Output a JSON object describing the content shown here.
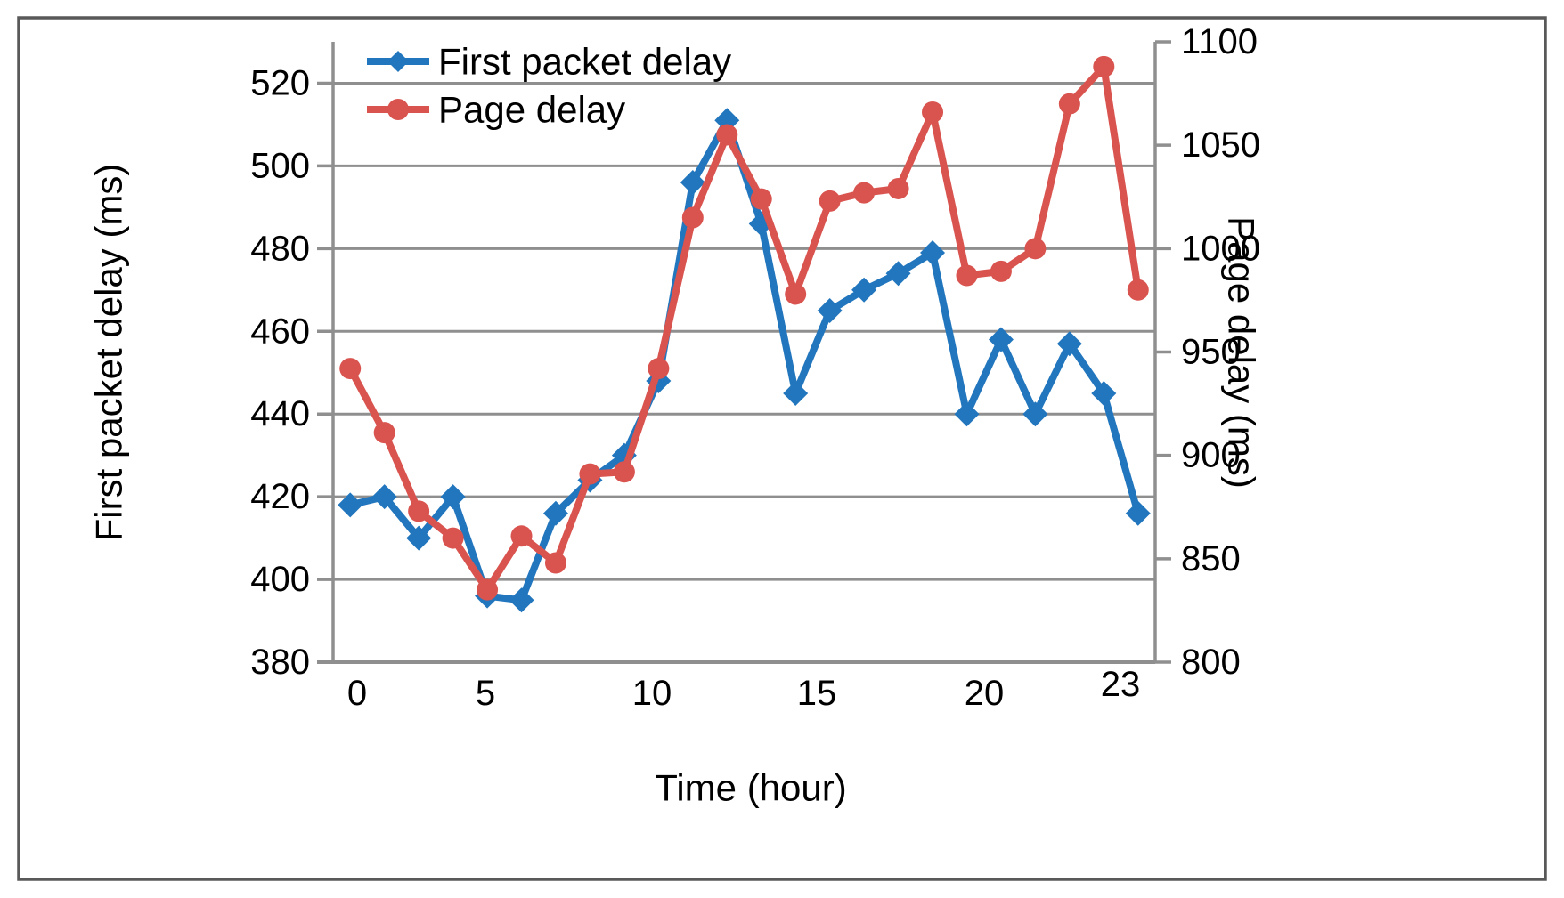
{
  "chart_data": {
    "type": "line",
    "title": "",
    "xlabel": "Time (hour)",
    "x": [
      0,
      1,
      2,
      3,
      4,
      5,
      6,
      7,
      8,
      9,
      10,
      11,
      12,
      13,
      14,
      15,
      16,
      17,
      18,
      19,
      20,
      21,
      22,
      23
    ],
    "x_tick_labels": [
      "0",
      "5",
      "10",
      "15",
      "20",
      "23"
    ],
    "x_tick_hours": [
      0,
      5,
      10,
      15,
      20,
      23
    ],
    "y_left": {
      "label": "First packet delay (ms)",
      "min": 380,
      "max": 530,
      "ticks": [
        380,
        400,
        420,
        440,
        460,
        480,
        500,
        520
      ]
    },
    "y_right": {
      "label": "Page delay (ms)",
      "min": 800,
      "max": 1100,
      "ticks": [
        800,
        850,
        900,
        950,
        1000,
        1050,
        1100
      ]
    },
    "grid": "horizontal-major",
    "legend_position": "top-left-inside",
    "series": [
      {
        "name": "First packet delay",
        "axis": "left",
        "color": "#2276BD",
        "marker": "diamond",
        "values": [
          418,
          420,
          410,
          420,
          396,
          395,
          416,
          424,
          430,
          448,
          496,
          511,
          486,
          445,
          465,
          470,
          474,
          479,
          440,
          458,
          440,
          457,
          445,
          416
        ]
      },
      {
        "name": "Page delay",
        "axis": "right",
        "color": "#D9534F",
        "marker": "circle",
        "values": [
          942,
          911,
          873,
          860,
          835,
          861,
          848,
          891,
          892,
          942,
          1015,
          1055,
          1024,
          978,
          1023,
          1027,
          1029,
          1066,
          987,
          989,
          1000,
          1070,
          1088,
          980
        ]
      }
    ]
  },
  "colors": {
    "gridline": "#8F8F8F",
    "axis_line": "#8F8F8F",
    "outer_border": "#595959",
    "text": "#000000",
    "background": "#FFFFFF"
  }
}
